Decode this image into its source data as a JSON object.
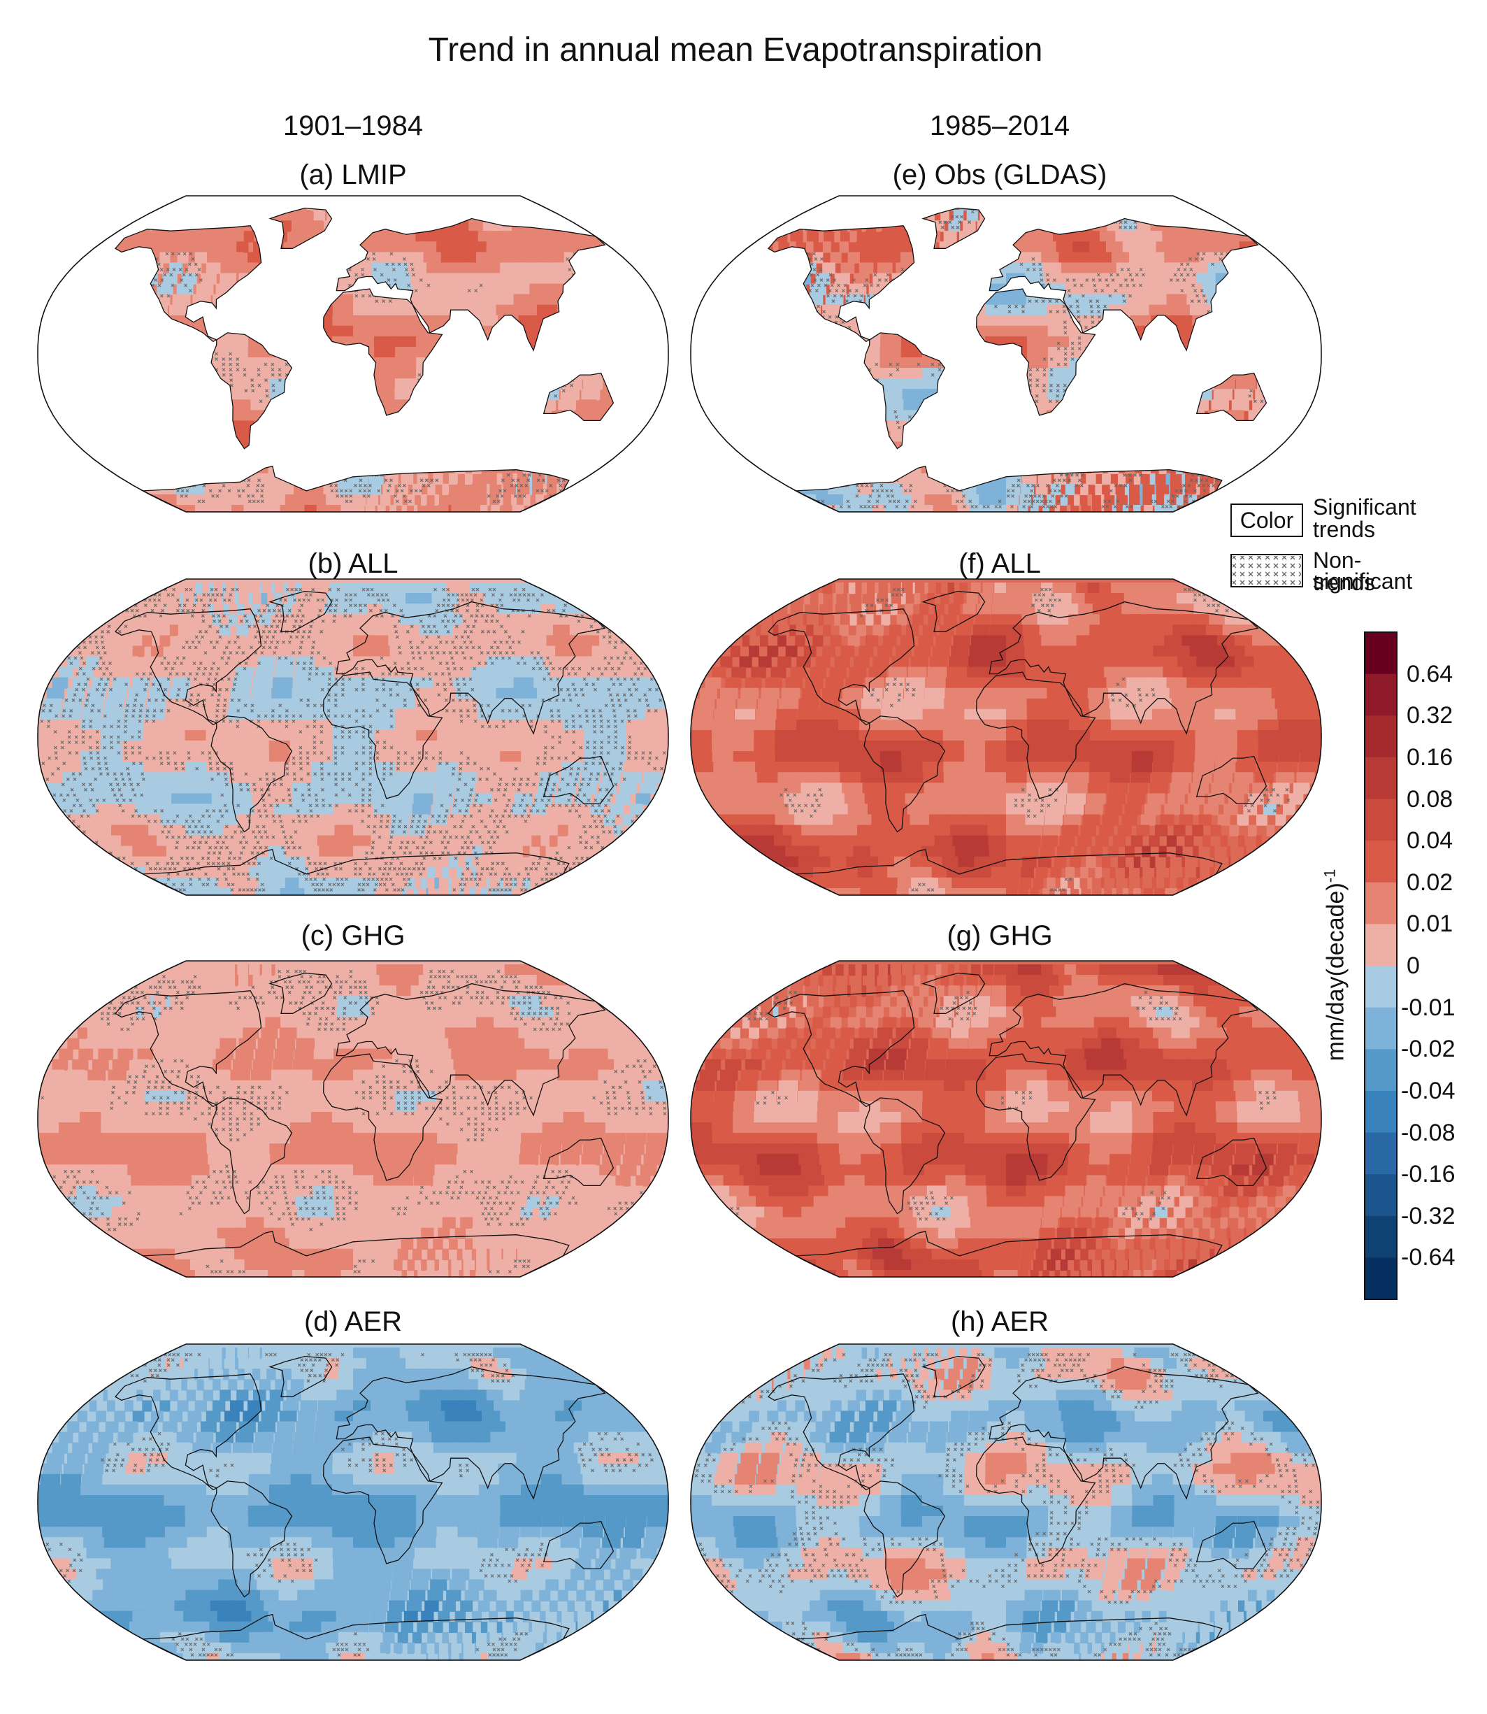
{
  "figure": {
    "title": "Trend in annual mean Evapotranspiration",
    "period_left": "1901–1984",
    "period_right": "1985–2014"
  },
  "panels": [
    {
      "id": "a",
      "title": "(a) LMIP",
      "coverage": "land",
      "mean_sign": "positive",
      "dominant_color": "#e58472"
    },
    {
      "id": "b",
      "title": "(b) ALL",
      "coverage": "global",
      "mean_sign": "mixed",
      "dominant_color": "#eeb0a6"
    },
    {
      "id": "c",
      "title": "(c) GHG",
      "coverage": "global",
      "mean_sign": "positive",
      "dominant_color": "#eeb0a6"
    },
    {
      "id": "d",
      "title": "(d) AER",
      "coverage": "global",
      "mean_sign": "negative",
      "dominant_color": "#a9cbe2"
    },
    {
      "id": "e",
      "title": "(e) Obs (GLDAS)",
      "coverage": "land",
      "mean_sign": "positive",
      "dominant_color": "#d95b47"
    },
    {
      "id": "f",
      "title": "(f) ALL",
      "coverage": "global",
      "mean_sign": "positive",
      "dominant_color": "#dd6a57"
    },
    {
      "id": "g",
      "title": "(g) GHG",
      "coverage": "global",
      "mean_sign": "positive",
      "dominant_color": "#dd6a57"
    },
    {
      "id": "h",
      "title": "(h) AER",
      "coverage": "global",
      "mean_sign": "mixed",
      "dominant_color": "#a9cbe2"
    }
  ],
  "legend": {
    "color_box": "Color",
    "color_label": [
      "Significant",
      "trends"
    ],
    "hatch_label": [
      "Non-significant",
      "trends"
    ]
  },
  "colorbar": {
    "unit_text": "mm/day(decade)",
    "unit_superscript": "-1",
    "ticks": [
      "0.64",
      "0.32",
      "0.16",
      "0.08",
      "0.04",
      "0.02",
      "0.01",
      "0",
      "-0.01",
      "-0.02",
      "-0.04",
      "-0.08",
      "-0.16",
      "-0.32",
      "-0.64"
    ],
    "colors_top_to_bottom": [
      "#67001f",
      "#8e1a2a",
      "#a52a2e",
      "#b83a36",
      "#cb4a3e",
      "#d95b47",
      "#e58472",
      "#eeb0a6",
      "#a9cbe2",
      "#7fb2d8",
      "#5599c9",
      "#3a82bb",
      "#2a69a5",
      "#1d568f",
      "#0f4273",
      "#053061"
    ]
  }
}
